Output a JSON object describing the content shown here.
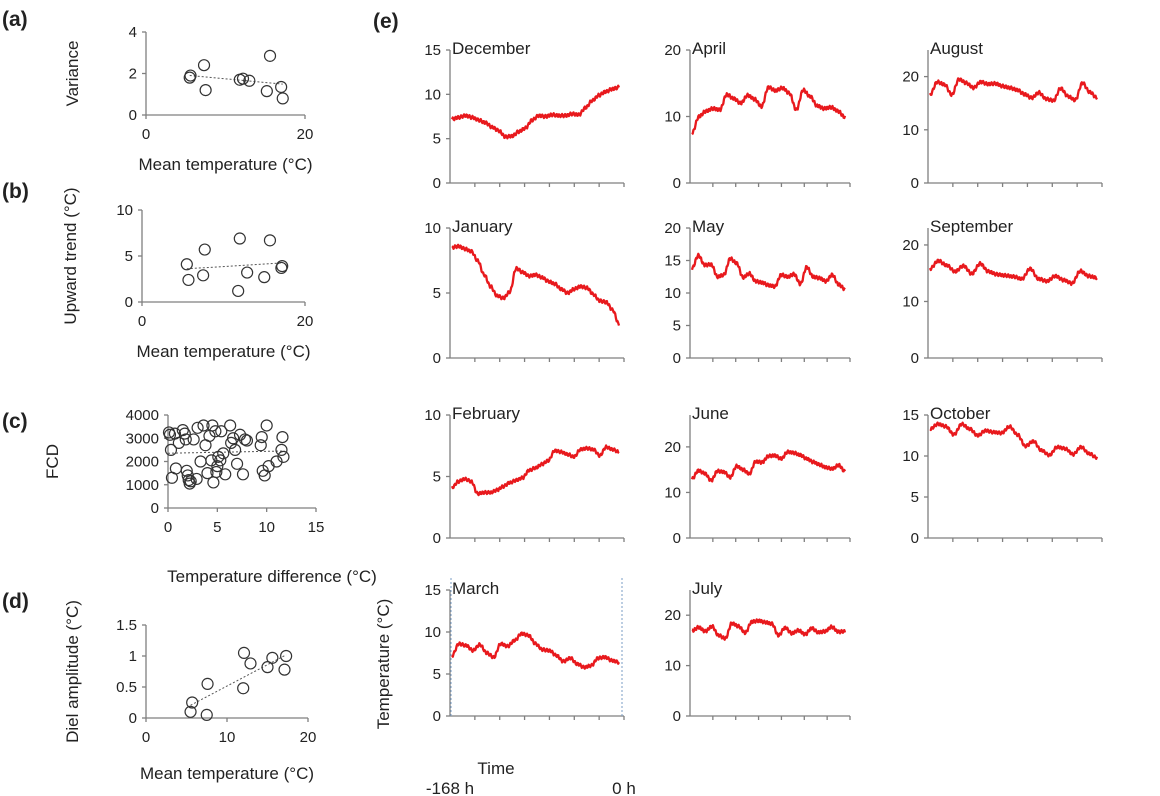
{
  "panel_labels": {
    "a": "(a)",
    "b": "(b)",
    "c": "(c)",
    "d": "(d)",
    "e": "(e)"
  },
  "chart_data": [
    {
      "id": "a",
      "type": "scatter",
      "xlabel": "Mean temperature (°C)",
      "ylabel": "Variance",
      "xlim": [
        0,
        20
      ],
      "ylim": [
        0,
        4
      ],
      "xticks": [
        "0",
        "20"
      ],
      "yticks": [
        "0",
        "2",
        "4"
      ],
      "trendline": true,
      "points": [
        [
          5.5,
          1.8
        ],
        [
          5.6,
          1.9
        ],
        [
          7.3,
          2.4
        ],
        [
          7.5,
          1.2
        ],
        [
          11.8,
          1.7
        ],
        [
          12.2,
          1.75
        ],
        [
          13.0,
          1.65
        ],
        [
          15.2,
          1.15
        ],
        [
          15.6,
          2.85
        ],
        [
          17.0,
          1.35
        ],
        [
          17.2,
          0.8
        ]
      ]
    },
    {
      "id": "b",
      "type": "scatter",
      "xlabel": "Mean temperature (°C)",
      "ylabel": "Upward trend (°C)",
      "xlim": [
        0,
        20
      ],
      "ylim": [
        0,
        10
      ],
      "xticks": [
        "0",
        "20"
      ],
      "yticks": [
        "0",
        "5",
        "10"
      ],
      "trendline": true,
      "points": [
        [
          5.5,
          4.1
        ],
        [
          5.7,
          2.4
        ],
        [
          7.5,
          2.9
        ],
        [
          7.7,
          5.7
        ],
        [
          11.8,
          1.2
        ],
        [
          12.0,
          6.9
        ],
        [
          12.9,
          3.2
        ],
        [
          15.0,
          2.7
        ],
        [
          15.7,
          6.7
        ],
        [
          17.1,
          3.7
        ],
        [
          17.2,
          3.9
        ]
      ]
    },
    {
      "id": "c",
      "type": "scatter",
      "xlabel": "Temperature difference (°C)",
      "ylabel": "FCD",
      "xlim": [
        0,
        15
      ],
      "ylim": [
        0,
        4000
      ],
      "xticks": [
        "0",
        "5",
        "10",
        "15"
      ],
      "yticks": [
        "0",
        "1000",
        "2000",
        "3000",
        "4000"
      ],
      "trendline": true,
      "points": [
        [
          0.1,
          3250
        ],
        [
          0.2,
          3150
        ],
        [
          0.3,
          2500
        ],
        [
          0.4,
          1300
        ],
        [
          0.7,
          3200
        ],
        [
          0.8,
          1700
        ],
        [
          1.1,
          2800
        ],
        [
          1.5,
          3350
        ],
        [
          1.7,
          3200
        ],
        [
          1.8,
          2950
        ],
        [
          1.9,
          1600
        ],
        [
          2.0,
          1400
        ],
        [
          2.1,
          1200
        ],
        [
          2.2,
          1050
        ],
        [
          2.3,
          1150
        ],
        [
          2.6,
          2950
        ],
        [
          2.9,
          1250
        ],
        [
          3.0,
          3450
        ],
        [
          3.3,
          2000
        ],
        [
          3.6,
          3550
        ],
        [
          3.8,
          2700
        ],
        [
          4.0,
          1500
        ],
        [
          4.2,
          3100
        ],
        [
          4.4,
          2050
        ],
        [
          4.5,
          3550
        ],
        [
          4.6,
          1100
        ],
        [
          4.8,
          3300
        ],
        [
          4.9,
          1550
        ],
        [
          5.0,
          1800
        ],
        [
          5.1,
          2200
        ],
        [
          5.3,
          2050
        ],
        [
          5.4,
          3300
        ],
        [
          5.6,
          2350
        ],
        [
          5.8,
          1450
        ],
        [
          6.3,
          3550
        ],
        [
          6.4,
          2800
        ],
        [
          6.6,
          3000
        ],
        [
          6.8,
          2500
        ],
        [
          7.0,
          1900
        ],
        [
          7.3,
          3150
        ],
        [
          7.6,
          1450
        ],
        [
          7.8,
          2950
        ],
        [
          8.0,
          2900
        ],
        [
          9.4,
          2700
        ],
        [
          9.5,
          3050
        ],
        [
          9.6,
          1600
        ],
        [
          9.8,
          1400
        ],
        [
          10.0,
          3550
        ],
        [
          10.2,
          1800
        ],
        [
          11.0,
          2000
        ],
        [
          11.5,
          2500
        ],
        [
          11.6,
          3050
        ],
        [
          11.7,
          2200
        ]
      ]
    },
    {
      "id": "d",
      "type": "scatter",
      "xlabel": "Mean temperature (°C)",
      "ylabel": "Diel amplitude (°C)",
      "xlim": [
        0,
        20
      ],
      "ylim": [
        0,
        1.5
      ],
      "xticks": [
        "0",
        "10",
        "20"
      ],
      "yticks": [
        "0",
        "0.5",
        "1",
        "1.5"
      ],
      "trendline": true,
      "points": [
        [
          5.5,
          0.1
        ],
        [
          5.7,
          0.25
        ],
        [
          7.5,
          0.05
        ],
        [
          7.6,
          0.55
        ],
        [
          12.0,
          0.48
        ],
        [
          12.1,
          1.05
        ],
        [
          12.9,
          0.88
        ],
        [
          15.0,
          0.82
        ],
        [
          15.6,
          0.97
        ],
        [
          17.1,
          0.78
        ],
        [
          17.3,
          1.0
        ]
      ]
    }
  ],
  "panel_e": {
    "xlabel": "Time",
    "ylabel": "Temperature (°C)",
    "x_start_label": "-168 h",
    "x_end_label": "0 h",
    "months": [
      {
        "name": "December",
        "yticks": [
          "0",
          "5",
          "10",
          "15"
        ],
        "ylim": [
          0,
          15
        ],
        "values": [
          7.2,
          7.4,
          7.6,
          7.4,
          7.1,
          6.8,
          6.3,
          5.9,
          5.2,
          5.3,
          5.8,
          6.2,
          7.1,
          7.6,
          7.5,
          7.7,
          7.6,
          7.6,
          7.8,
          7.7,
          8.5,
          9.3,
          9.9,
          10.3,
          10.6,
          10.8
        ]
      },
      {
        "name": "January",
        "yticks": [
          "0",
          "5",
          "10"
        ],
        "ylim": [
          0,
          10
        ],
        "values": [
          8.5,
          8.6,
          8.4,
          8.2,
          7.5,
          6.4,
          5.5,
          4.8,
          4.6,
          5.1,
          6.9,
          6.6,
          6.3,
          6.4,
          6.2,
          5.9,
          5.7,
          5.3,
          5.0,
          5.3,
          5.5,
          5.4,
          4.9,
          4.4,
          4.3,
          3.7,
          2.6
        ]
      },
      {
        "name": "February",
        "yticks": [
          "0",
          "5",
          "10"
        ],
        "ylim": [
          0,
          10
        ],
        "values": [
          4.1,
          4.6,
          4.8,
          4.6,
          3.6,
          3.7,
          3.7,
          3.9,
          4.2,
          4.5,
          4.7,
          4.9,
          5.5,
          5.7,
          6.0,
          6.3,
          7.1,
          7.0,
          6.8,
          6.6,
          7.2,
          7.3,
          7.2,
          6.7,
          7.4,
          7.2,
          7.0
        ]
      },
      {
        "name": "March",
        "yticks": [
          "0",
          "5",
          "10",
          "15"
        ],
        "ylim": [
          0,
          15
        ],
        "values": [
          7.2,
          8.6,
          8.4,
          7.8,
          8.5,
          7.5,
          7.0,
          8.6,
          8.3,
          9.0,
          9.8,
          9.6,
          8.6,
          7.9,
          7.8,
          7.2,
          6.5,
          6.9,
          6.2,
          5.8,
          6.0,
          6.9,
          7.0,
          6.6,
          6.4
        ]
      },
      {
        "name": "April",
        "yticks": [
          "0",
          "10",
          "20"
        ],
        "ylim": [
          0,
          20
        ],
        "values": [
          7.5,
          10.0,
          10.8,
          11.2,
          11.0,
          13.3,
          12.7,
          12.0,
          13.2,
          12.6,
          11.5,
          14.4,
          13.9,
          14.3,
          13.5,
          11.0,
          14.0,
          13.0,
          11.6,
          11.2,
          11.4,
          10.8,
          9.9
        ]
      },
      {
        "name": "May",
        "yticks": [
          "0",
          "5",
          "10",
          "15",
          "20"
        ],
        "ylim": [
          0,
          20
        ],
        "values": [
          13.8,
          15.8,
          14.3,
          14.4,
          12.5,
          12.8,
          15.3,
          14.6,
          12.4,
          13.0,
          11.8,
          11.6,
          11.2,
          11.0,
          12.8,
          12.5,
          12.9,
          11.4,
          14.0,
          12.5,
          12.3,
          11.8,
          12.8,
          11.3,
          10.6
        ]
      },
      {
        "name": "June",
        "yticks": [
          "0",
          "10",
          "20"
        ],
        "ylim": [
          0,
          27
        ],
        "values": [
          13.0,
          14.8,
          14.2,
          12.6,
          14.7,
          14.5,
          13.3,
          15.8,
          15.0,
          14.1,
          16.8,
          16.6,
          18.0,
          18.1,
          17.4,
          18.9,
          18.7,
          18.2,
          17.4,
          16.7,
          16.1,
          15.5,
          15.2,
          16.0,
          14.6
        ]
      },
      {
        "name": "July",
        "yticks": [
          "0",
          "10",
          "20"
        ],
        "ylim": [
          0,
          25
        ],
        "values": [
          16.9,
          17.6,
          16.8,
          17.8,
          16.0,
          15.4,
          18.4,
          17.8,
          16.5,
          18.7,
          18.9,
          18.6,
          18.3,
          16.0,
          17.5,
          16.4,
          17.0,
          16.2,
          17.4,
          16.6,
          16.8,
          17.7,
          16.7,
          16.8
        ]
      },
      {
        "name": "August",
        "yticks": [
          "0",
          "10",
          "20"
        ],
        "ylim": [
          0,
          25
        ],
        "values": [
          16.6,
          19.0,
          18.5,
          16.6,
          19.5,
          18.8,
          17.9,
          19.0,
          18.6,
          18.7,
          18.2,
          17.9,
          17.5,
          16.7,
          16.0,
          17.0,
          15.8,
          15.5,
          17.8,
          16.3,
          15.6,
          18.8,
          17.1,
          16.0
        ]
      },
      {
        "name": "September",
        "yticks": [
          "0",
          "10",
          "20"
        ],
        "ylim": [
          0,
          23
        ],
        "values": [
          15.8,
          17.2,
          16.4,
          15.3,
          16.3,
          14.9,
          16.7,
          15.3,
          14.8,
          14.6,
          14.4,
          14.0,
          15.8,
          14.0,
          13.6,
          14.5,
          13.8,
          13.2,
          15.4,
          14.5,
          14.2
        ]
      },
      {
        "name": "October",
        "yticks": [
          "0",
          "5",
          "10",
          "15"
        ],
        "ylim": [
          0,
          15
        ],
        "values": [
          13.3,
          13.9,
          13.6,
          12.6,
          13.9,
          13.3,
          12.5,
          13.1,
          12.9,
          12.8,
          13.6,
          12.6,
          11.2,
          11.8,
          10.7,
          10.1,
          11.1,
          10.9,
          10.2,
          11.1,
          10.3,
          9.8
        ]
      }
    ]
  }
}
